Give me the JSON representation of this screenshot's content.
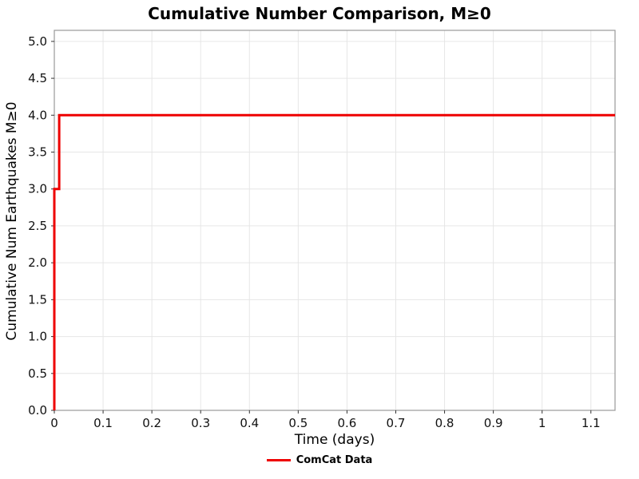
{
  "chart_data": {
    "type": "line",
    "title": "Cumulative Number Comparison, M≥0",
    "xlabel": "Time (days)",
    "ylabel": "Cumulative Num Earthquakes M≥0",
    "xlim": [
      0,
      1.1495
    ],
    "ylim": [
      0,
      5.15
    ],
    "grid": true,
    "grid_color": "#e6e6e6",
    "spine_color": "#999999",
    "tick_color": "#333333",
    "legend_position": "bottom-center",
    "xticks": {
      "values": [
        0,
        0.1,
        0.2,
        0.3,
        0.4,
        0.5,
        0.6,
        0.7,
        0.8,
        0.9,
        1,
        1.1
      ],
      "labels": [
        "0",
        "0.1",
        "0.2",
        "0.3",
        "0.4",
        "0.5",
        "0.6",
        "0.7",
        "0.8",
        "0.9",
        "1",
        "1.1"
      ]
    },
    "yticks": {
      "values": [
        0,
        0.5,
        1,
        1.5,
        2,
        2.5,
        3,
        3.5,
        4,
        4.5,
        5
      ],
      "labels": [
        "0.0",
        "0.5",
        "1.0",
        "1.5",
        "2.0",
        "2.5",
        "3.0",
        "3.5",
        "4.0",
        "4.5",
        "5.0"
      ]
    },
    "series": [
      {
        "name": "ComCat Data",
        "color": "#ee0000",
        "line_width": 3,
        "points": [
          [
            0,
            0
          ],
          [
            0,
            3
          ],
          [
            0.01,
            3
          ],
          [
            0.01,
            4
          ],
          [
            1.1495,
            4
          ]
        ]
      }
    ]
  }
}
